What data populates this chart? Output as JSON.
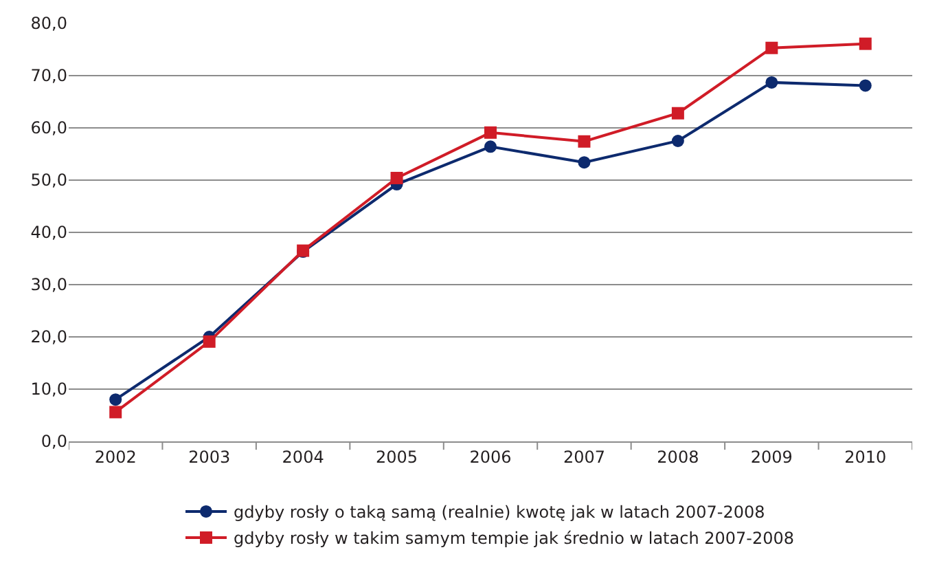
{
  "chart_data": {
    "type": "line",
    "categories": [
      "2002",
      "2003",
      "2004",
      "2005",
      "2006",
      "2007",
      "2008",
      "2009",
      "2010"
    ],
    "series": [
      {
        "name": "gdyby rosły o taką samą (realnie) kwotę jak w latach 2007-2008",
        "color": "#0d2a6e",
        "marker": "circle",
        "values": [
          8.0,
          20.0,
          36.3,
          49.2,
          56.4,
          53.4,
          57.5,
          68.7,
          68.1
        ]
      },
      {
        "name": "gdyby rosły w takim samym tempie jak średnio w latach 2007-2008",
        "color": "#d01c27",
        "marker": "square",
        "values": [
          5.6,
          19.1,
          36.5,
          50.4,
          59.1,
          57.4,
          62.8,
          75.3,
          76.1
        ]
      }
    ],
    "ylim": [
      0,
      80
    ],
    "yticks": [
      {
        "value": 0,
        "label": "0,0"
      },
      {
        "value": 10,
        "label": "10,0"
      },
      {
        "value": 20,
        "label": "20,0"
      },
      {
        "value": 30,
        "label": "30,0"
      },
      {
        "value": 40,
        "label": "40,0"
      },
      {
        "value": 50,
        "label": "50,0"
      },
      {
        "value": 60,
        "label": "60,0"
      },
      {
        "value": 70,
        "label": "70,0"
      },
      {
        "value": 80,
        "label": "80,0"
      }
    ],
    "grid": "y",
    "legend": "bottom",
    "line_style": "solid"
  }
}
